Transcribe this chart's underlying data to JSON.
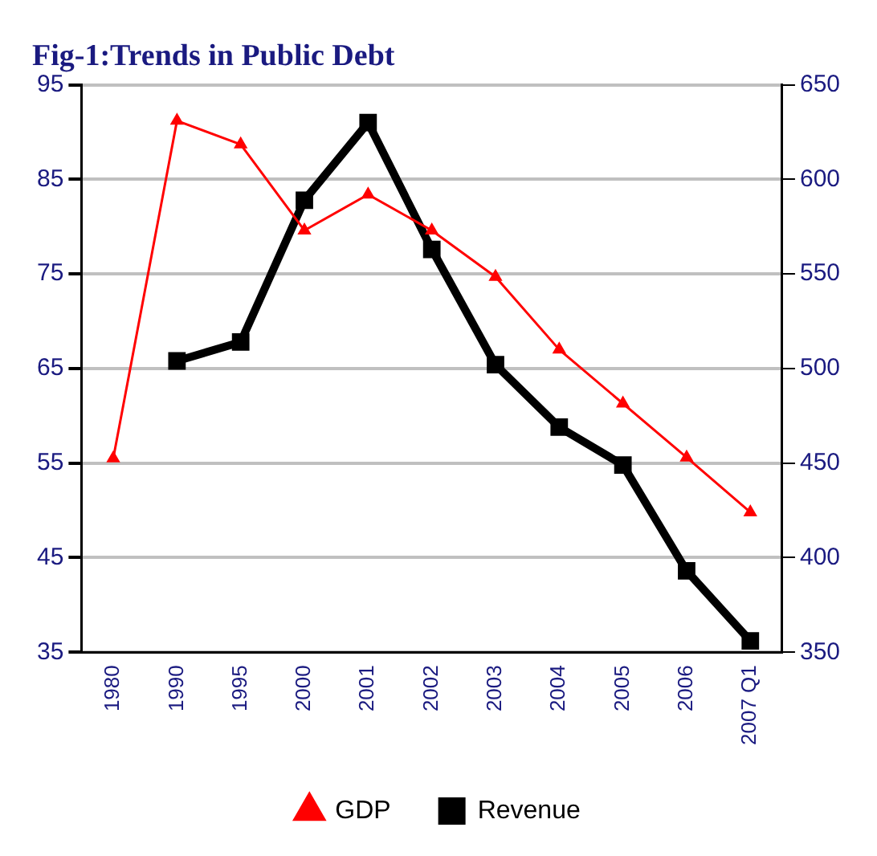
{
  "chart_data": {
    "type": "line",
    "title": "Fig-1:Trends in Public Debt",
    "categories": [
      "1980",
      "1990",
      "1995",
      "2000",
      "2001",
      "2002",
      "2003",
      "2004",
      "2005",
      "2006",
      "2007 Q1"
    ],
    "series": [
      {
        "name": "GDP",
        "color": "#ff0000",
        "marker": "triangle",
        "values": [
          55.5,
          91.2,
          88.7,
          79.6,
          83.4,
          79.6,
          74.7,
          67.0,
          61.3,
          55.6,
          49.8
        ]
      },
      {
        "name": "Revenue",
        "color": "#000000",
        "marker": "square",
        "axis": "y2",
        "values": [
          null,
          504,
          514,
          589,
          630,
          563,
          502,
          469,
          449,
          393,
          356
        ]
      }
    ],
    "ylim": [
      35,
      95
    ],
    "yticks": [
      35,
      45,
      55,
      65,
      75,
      85,
      95
    ],
    "y2lim": [
      350,
      650
    ],
    "y2ticks": [
      350,
      400,
      450,
      500,
      550,
      600,
      650
    ],
    "grid": "y",
    "legend": "bottom"
  }
}
